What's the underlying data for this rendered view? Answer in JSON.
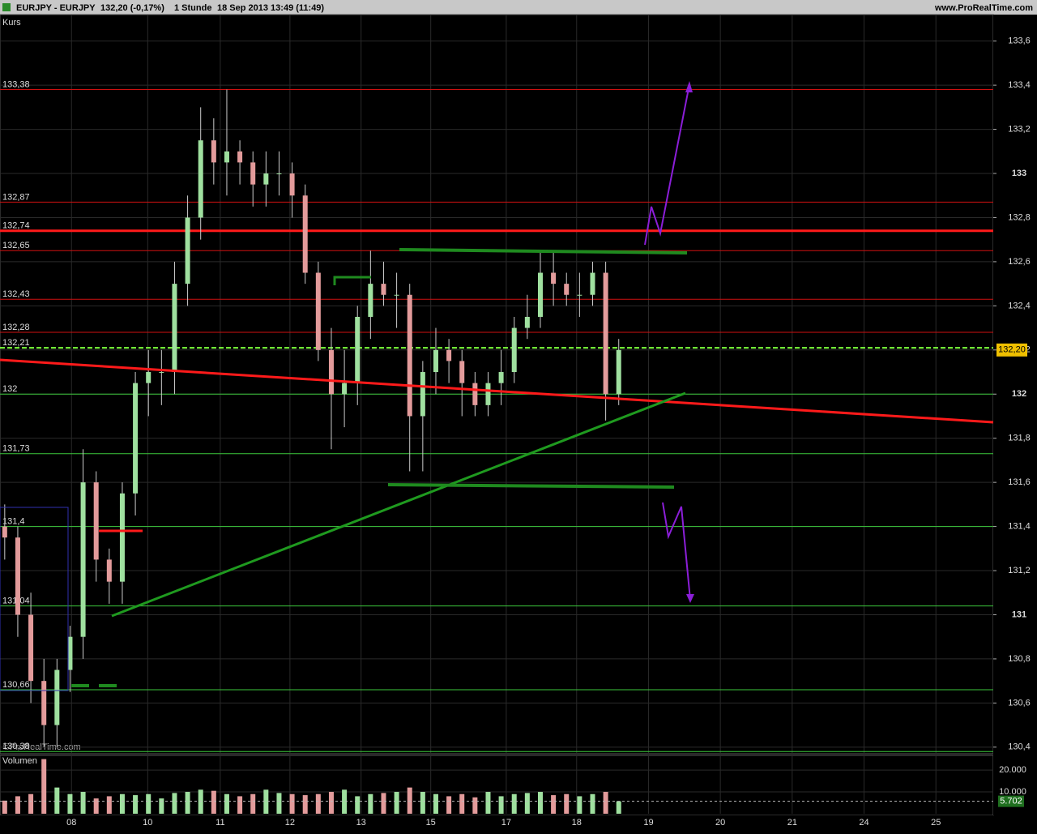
{
  "header": {
    "title": "EURJPY - EURJPY",
    "quote": "132,20 (-0,17%)",
    "period": "1 Stunde",
    "datetime": "18 Sep 2013 13:49 (11:49)",
    "site": "www.ProRealTime.com"
  },
  "chart_data": {
    "type": "candlestick",
    "panel_label": "Kurs",
    "watermark": "©ProRealTime.com",
    "xlim": [
      -0.985,
      12.7
    ],
    "xticks": [
      {
        "value": 0,
        "label": "08"
      },
      {
        "value": 1.05,
        "label": "10"
      },
      {
        "value": 2.05,
        "label": "11"
      },
      {
        "value": 3.01,
        "label": "12"
      },
      {
        "value": 3.99,
        "label": "13"
      },
      {
        "value": 4.95,
        "label": "15"
      },
      {
        "value": 5.99,
        "label": "17"
      },
      {
        "value": 6.96,
        "label": "18"
      },
      {
        "value": 7.95,
        "label": "19"
      },
      {
        "value": 8.94,
        "label": "20"
      },
      {
        "value": 9.93,
        "label": "21"
      },
      {
        "value": 10.92,
        "label": "24"
      },
      {
        "value": 11.91,
        "label": "25"
      }
    ],
    "ylim": [
      130.37,
      133.72
    ],
    "yticks": [
      {
        "value": 130.4,
        "label": "130,4"
      },
      {
        "value": 130.6,
        "label": "130,6"
      },
      {
        "value": 130.8,
        "label": "130,8"
      },
      {
        "value": 131,
        "label": "131"
      },
      {
        "value": 131.2,
        "label": "131,2"
      },
      {
        "value": 131.4,
        "label": "131,4"
      },
      {
        "value": 131.6,
        "label": "131,6"
      },
      {
        "value": 131.8,
        "label": "131,8"
      },
      {
        "value": 132,
        "label": "132"
      },
      {
        "value": 132.2,
        "label": "132,2"
      },
      {
        "value": 132.4,
        "label": "132,4"
      },
      {
        "value": 132.6,
        "label": "132,6"
      },
      {
        "value": 132.8,
        "label": "132,8"
      },
      {
        "value": 133,
        "label": "133"
      },
      {
        "value": 133.2,
        "label": "133,2"
      },
      {
        "value": 133.4,
        "label": "133,4"
      },
      {
        "value": 133.6,
        "label": "133,6"
      }
    ],
    "levels": [
      {
        "value": 133.38,
        "label": "133,38",
        "color": "#d01010"
      },
      {
        "value": 132.87,
        "label": "132,87",
        "color": "#d01010"
      },
      {
        "value": 132.74,
        "label": "132,74",
        "color": "#ff1a1a"
      },
      {
        "value": 132.65,
        "label": "132,65",
        "color": "#d01010"
      },
      {
        "value": 132.43,
        "label": "132,43",
        "color": "#d01010"
      },
      {
        "value": 132.28,
        "label": "132,28",
        "color": "#d01010"
      },
      {
        "value": 132.21,
        "label": "132,21",
        "color": "#7cff3c"
      },
      {
        "value": 132,
        "label": "132",
        "color": "#3cc83c"
      },
      {
        "value": 131.73,
        "label": "131,73",
        "color": "#3cc83c"
      },
      {
        "value": 131.4,
        "label": "131,4",
        "color": "#3cc83c"
      },
      {
        "value": 131.04,
        "label": "131,04",
        "color": "#3cc83c"
      },
      {
        "value": 130.66,
        "label": "130,66",
        "color": "#3cc83c"
      },
      {
        "value": 130.38,
        "label": "130,38",
        "color": "#3cc83c"
      }
    ],
    "last_price": {
      "value": 132.2,
      "label": "132,20"
    },
    "x": [
      -0.92,
      -0.74,
      -0.56,
      -0.38,
      -0.2,
      -0.02,
      0.16,
      0.34,
      0.52,
      0.7,
      0.88,
      1.06,
      1.24,
      1.42,
      1.6,
      1.78,
      1.96,
      2.14,
      2.32,
      2.5,
      2.68,
      2.86,
      3.04,
      3.22,
      3.4,
      3.58,
      3.76,
      3.94,
      4.12,
      4.3,
      4.48,
      4.66,
      4.84,
      5.02,
      5.2,
      5.38,
      5.56,
      5.74,
      5.92,
      6.1,
      6.28,
      6.46,
      6.64,
      6.82,
      7,
      7.18,
      7.36,
      7.54
    ],
    "open": [
      131.4,
      131.35,
      131.0,
      130.7,
      130.5,
      130.75,
      130.9,
      131.6,
      131.25,
      131.15,
      131.55,
      132.05,
      132.1,
      132.1,
      132.5,
      132.8,
      133.15,
      133.05,
      133.1,
      133.05,
      132.95,
      133.0,
      133.0,
      132.9,
      132.55,
      132.2,
      132.0,
      132.05,
      132.35,
      132.5,
      132.45,
      132.45,
      131.9,
      132.1,
      132.2,
      132.15,
      132.05,
      131.95,
      132.05,
      132.1,
      132.3,
      132.35,
      132.55,
      132.5,
      132.45,
      132.45,
      132.55,
      132.0
    ],
    "high": [
      131.5,
      131.4,
      131.1,
      130.8,
      130.8,
      130.95,
      131.75,
      131.65,
      131.3,
      131.6,
      132.1,
      132.2,
      132.2,
      132.6,
      132.9,
      133.3,
      133.25,
      133.38,
      133.15,
      133.1,
      133.1,
      133.1,
      133.05,
      132.95,
      132.6,
      132.3,
      132.2,
      132.4,
      132.65,
      132.6,
      132.55,
      132.5,
      132.15,
      132.3,
      132.25,
      132.2,
      132.1,
      132.1,
      132.2,
      132.35,
      132.45,
      132.65,
      132.65,
      132.55,
      132.55,
      132.6,
      132.6,
      132.25
    ],
    "low": [
      131.25,
      130.9,
      130.6,
      130.4,
      130.4,
      130.65,
      130.8,
      131.15,
      131.05,
      131.05,
      131.45,
      131.9,
      131.95,
      132.0,
      132.4,
      132.7,
      132.95,
      132.9,
      132.95,
      132.85,
      132.85,
      132.9,
      132.8,
      132.5,
      132.15,
      131.75,
      131.85,
      131.95,
      132.25,
      132.4,
      132.3,
      131.65,
      131.65,
      132.0,
      132.05,
      131.9,
      131.9,
      131.9,
      131.95,
      132.05,
      132.25,
      132.3,
      132.4,
      132.4,
      132.35,
      132.4,
      131.88,
      131.95
    ],
    "close": [
      131.35,
      131.0,
      130.7,
      130.5,
      130.75,
      130.9,
      131.6,
      131.25,
      131.15,
      131.55,
      132.05,
      132.1,
      132.1,
      132.5,
      132.8,
      133.15,
      133.05,
      133.1,
      133.05,
      132.95,
      133.0,
      133.0,
      132.9,
      132.55,
      132.2,
      132.0,
      132.05,
      132.35,
      132.5,
      132.45,
      132.45,
      131.9,
      132.1,
      132.2,
      132.15,
      132.05,
      131.95,
      132.05,
      132.1,
      132.3,
      132.35,
      132.55,
      132.5,
      132.45,
      132.45,
      132.55,
      132.0,
      132.2
    ],
    "volume_panel": {
      "label": "Volumen",
      "ylim": [
        0,
        26700
      ],
      "yticks": [
        {
          "value": 10000,
          "label": "10.000"
        },
        {
          "value": 20000,
          "label": "20.000"
        }
      ],
      "last": {
        "value": 5702,
        "label": "5.702"
      },
      "values": [
        6000,
        8000,
        9000,
        25000,
        12000,
        9000,
        10000,
        7000,
        8000,
        9000,
        8500,
        9000,
        7000,
        9500,
        10000,
        11000,
        10500,
        9000,
        8000,
        9000,
        11000,
        9500,
        9000,
        8500,
        9000,
        10000,
        11000,
        8000,
        9000,
        9500,
        10000,
        12000,
        10000,
        9000,
        8000,
        9000,
        7500,
        10000,
        8000,
        9000,
        9500,
        10000,
        8500,
        9000,
        8000,
        9000,
        10000,
        5702
      ]
    }
  }
}
